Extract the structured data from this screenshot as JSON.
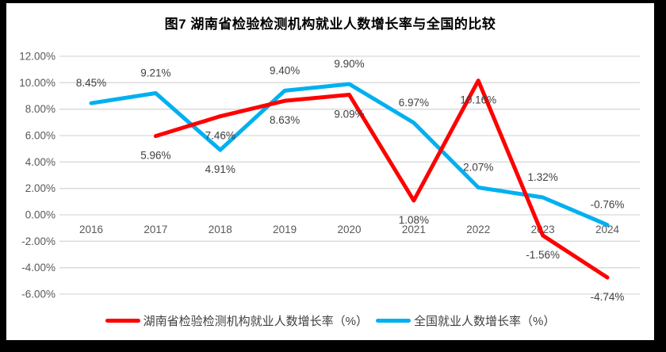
{
  "title": "图7 湖南省检验检测机构就业人数增长率与全国的比较",
  "colors": {
    "frame": "#000000",
    "panel": "#FFFFFF",
    "gridline": "#D9D9D9",
    "axis_text": "#595959",
    "data_label_text": "#404040",
    "hunan_red": "#FF0000",
    "national_blue": "#00B0F0"
  },
  "chart_data": {
    "type": "line",
    "title": "图7 湖南省检验检测机构就业人数增长率与全国的比较",
    "categories": [
      "2016",
      "2017",
      "2018",
      "2019",
      "2020",
      "2021",
      "2022",
      "2023",
      "2024"
    ],
    "series": [
      {
        "name": "湖南省检验检测机构就业人数增长率（%）",
        "color": "#FF0000",
        "values": [
          null,
          5.96,
          7.46,
          8.63,
          9.09,
          1.08,
          10.16,
          -1.56,
          -4.74
        ],
        "labels": [
          "",
          "5.96%",
          "7.46%",
          "8.63%",
          "9.09%",
          "1.08%",
          "10.16%",
          "-1.56%",
          "-4.74%"
        ],
        "label_pos": [
          "",
          "below",
          "below",
          "below",
          "below",
          "below",
          "below",
          "below",
          "below"
        ]
      },
      {
        "name": "全国就业人数增长率（%）",
        "color": "#00B0F0",
        "values": [
          8.45,
          9.21,
          4.91,
          9.4,
          9.9,
          6.97,
          2.07,
          1.32,
          -0.76
        ],
        "labels": [
          "8.45%",
          "9.21%",
          "4.91%",
          "9.40%",
          "9.90%",
          "6.97%",
          "2.07%",
          "1.32%",
          "-0.76%"
        ],
        "label_pos": [
          "above",
          "above",
          "below",
          "above",
          "above",
          "above",
          "above",
          "above",
          "above"
        ]
      }
    ],
    "ylim": [
      -6,
      12
    ],
    "ytick_step": 2,
    "yticks": [
      "12.00%",
      "10.00%",
      "8.00%",
      "6.00%",
      "4.00%",
      "2.00%",
      "0.00%",
      "-2.00%",
      "-4.00%",
      "-6.00%"
    ],
    "grid": true,
    "xlabel": "",
    "ylabel": "",
    "legend_position": "bottom"
  }
}
